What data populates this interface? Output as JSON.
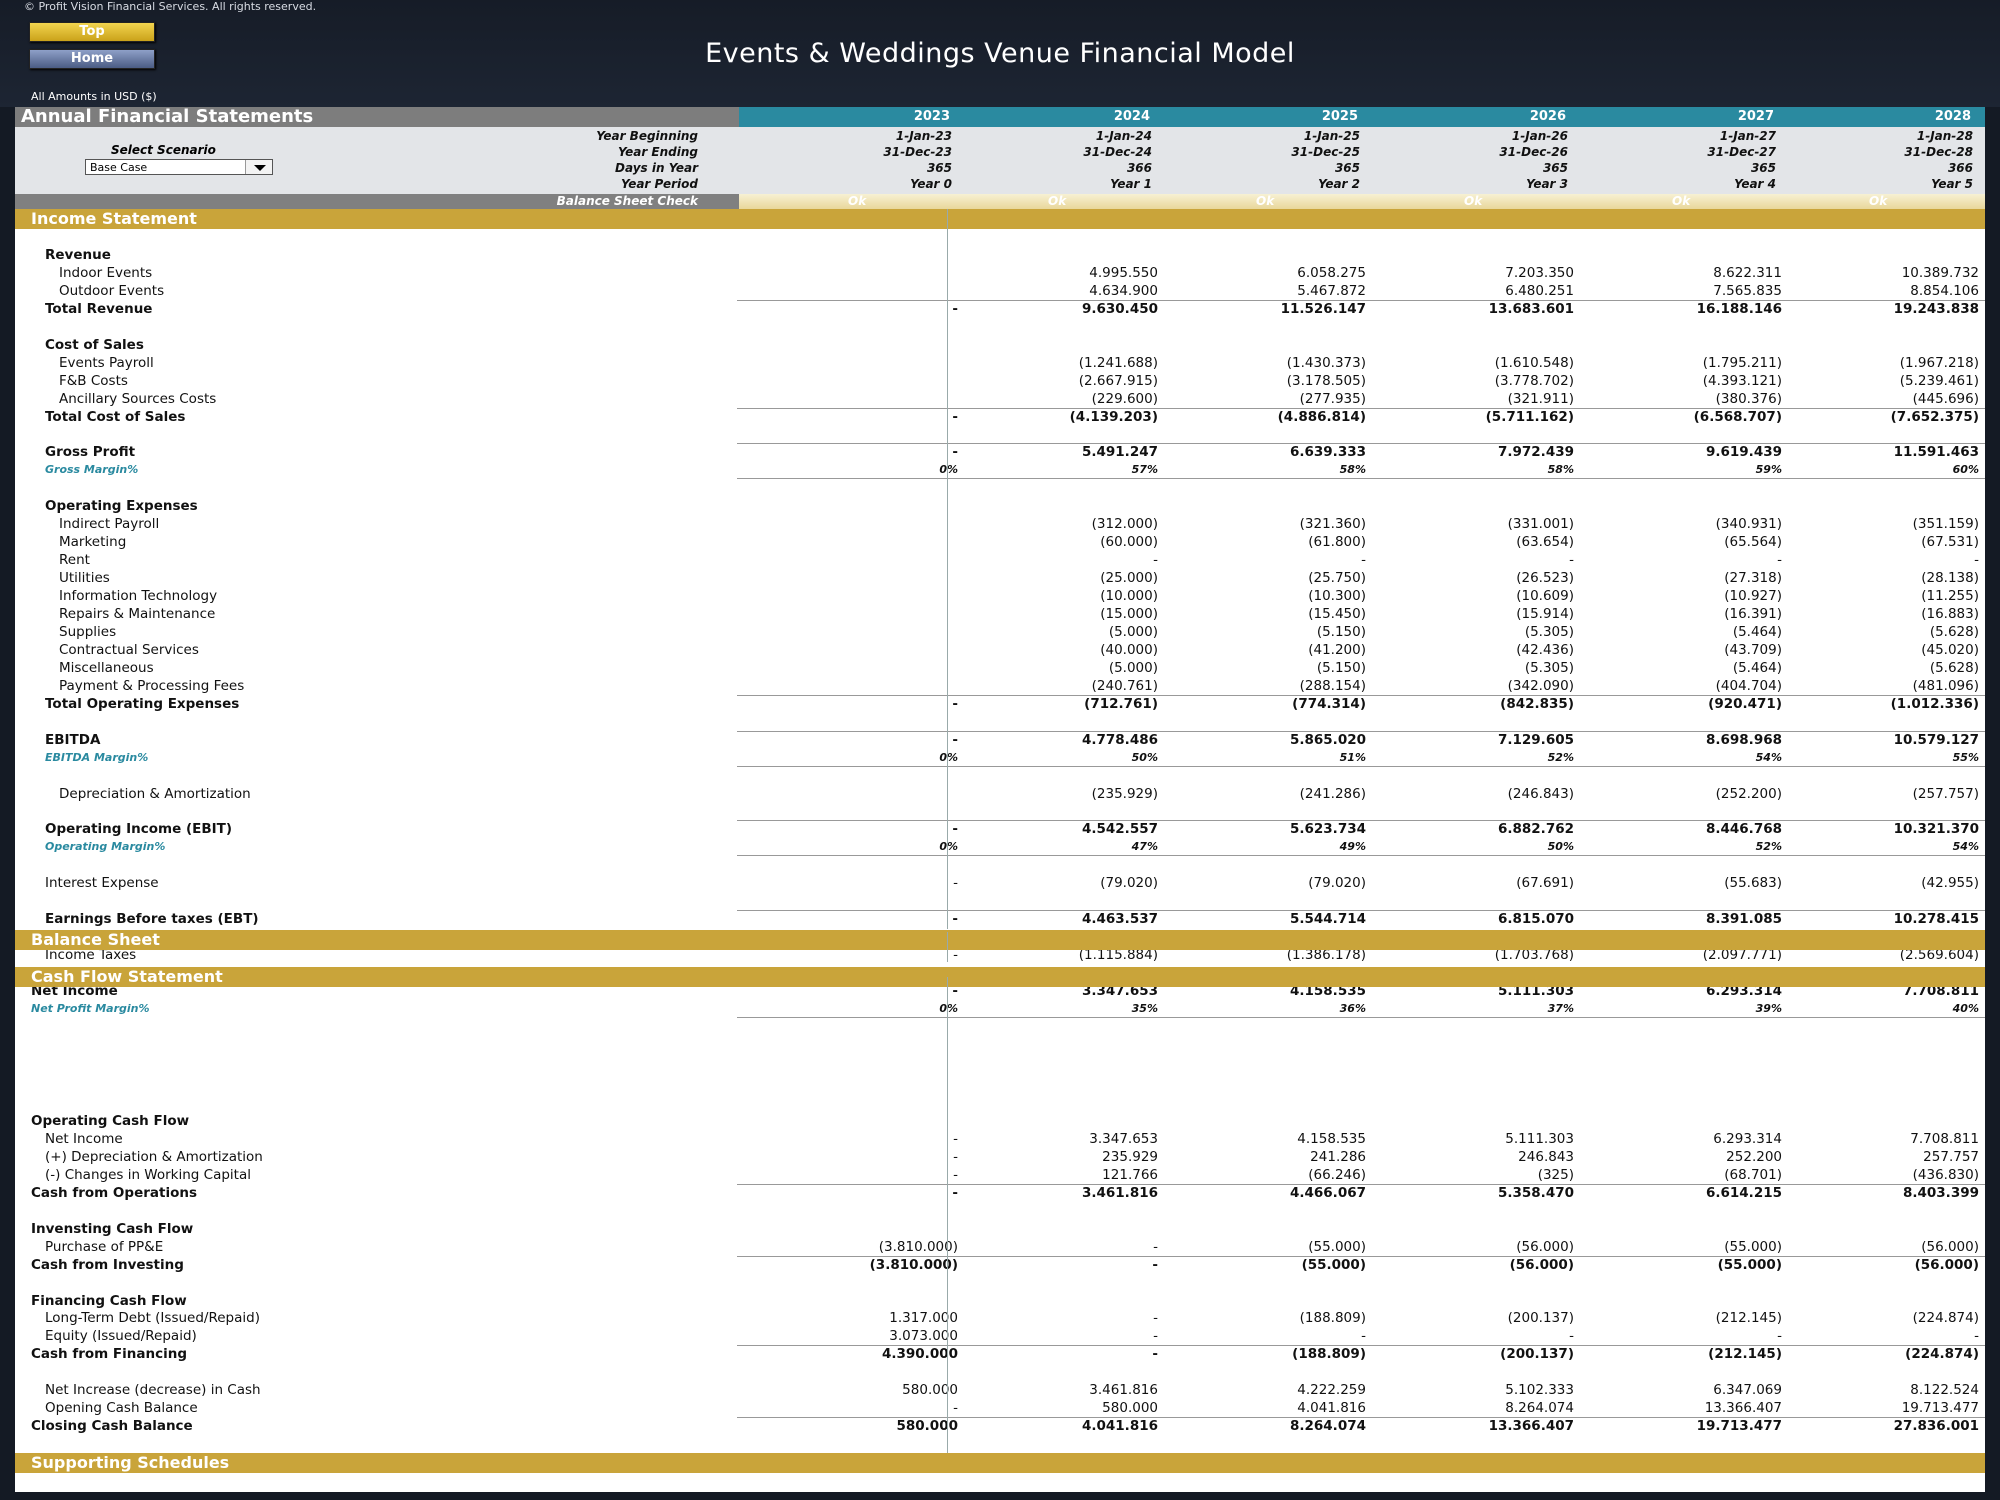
{
  "copyright": "© Profit Vision Financial Services. All rights reserved.",
  "nav": {
    "top_label": "Top",
    "home_label": "Home"
  },
  "title": "Events & Weddings Venue Financial Model",
  "amounts_note": "All Amounts in  USD ($)",
  "header": {
    "sheet_title": "Annual Financial Statements",
    "years": [
      "2023",
      "2024",
      "2025",
      "2026",
      "2027",
      "2028"
    ],
    "rows": [
      {
        "label": "Year Beginning",
        "values": [
          "1-Jan-23",
          "1-Jan-24",
          "1-Jan-25",
          "1-Jan-26",
          "1-Jan-27",
          "1-Jan-28"
        ]
      },
      {
        "label": "Year Ending",
        "values": [
          "31-Dec-23",
          "31-Dec-24",
          "31-Dec-25",
          "31-Dec-26",
          "31-Dec-27",
          "31-Dec-28"
        ]
      },
      {
        "label": "Days in Year",
        "values": [
          "365",
          "366",
          "365",
          "365",
          "365",
          "366"
        ]
      },
      {
        "label": "Year Period",
        "values": [
          "Year 0",
          "Year 1",
          "Year 2",
          "Year 3",
          "Year 4",
          "Year 5"
        ]
      }
    ],
    "scenario_label": "Select Scenario",
    "scenario_value": "Base Case",
    "check_label": "Balance Sheet Check",
    "check_values": [
      "Ok",
      "Ok",
      "Ok",
      "Ok",
      "Ok",
      "Ok"
    ]
  },
  "sections": {
    "income": "Income Statement",
    "balance": "Balance Sheet",
    "cashflow": "Cash Flow Statement",
    "supporting": "Supporting Schedules"
  },
  "income_rows": [
    {
      "label": "Revenue",
      "style": "head"
    },
    {
      "label": "Indoor Events",
      "style": "sub",
      "values": [
        "",
        "4.995.550",
        "6.058.275",
        "7.203.350",
        "8.622.311",
        "10.389.732"
      ]
    },
    {
      "label": "Outdoor Events",
      "style": "sub",
      "values": [
        "",
        "4.634.900",
        "5.467.872",
        "6.480.251",
        "7.565.835",
        "8.854.106"
      ]
    },
    {
      "label": "Total Revenue",
      "style": "total",
      "values": [
        "-",
        "9.630.450",
        "11.526.147",
        "13.683.601",
        "16.188.146",
        "19.243.838"
      ]
    },
    {
      "style": "blank"
    },
    {
      "label": "Cost of Sales",
      "style": "head"
    },
    {
      "label": "Events Payroll",
      "style": "sub",
      "values": [
        "",
        "(1.241.688)",
        "(1.430.373)",
        "(1.610.548)",
        "(1.795.211)",
        "(1.967.218)"
      ]
    },
    {
      "label": "F&B Costs",
      "style": "sub",
      "values": [
        "",
        "(2.667.915)",
        "(3.178.505)",
        "(3.778.702)",
        "(4.393.121)",
        "(5.239.461)"
      ]
    },
    {
      "label": "Ancillary Sources Costs",
      "style": "sub",
      "values": [
        "",
        "(229.600)",
        "(277.935)",
        "(321.911)",
        "(380.376)",
        "(445.696)"
      ]
    },
    {
      "label": "Total Cost of Sales",
      "style": "total",
      "values": [
        "-",
        "(4.139.203)",
        "(4.886.814)",
        "(5.711.162)",
        "(6.568.707)",
        "(7.652.375)"
      ]
    },
    {
      "style": "blank"
    },
    {
      "label": "Gross Profit",
      "style": "total",
      "values": [
        "-",
        "5.491.247",
        "6.639.333",
        "7.972.439",
        "9.619.439",
        "11.591.463"
      ]
    },
    {
      "label": "Gross Margin%",
      "style": "margin",
      "values": [
        "0%",
        "57%",
        "58%",
        "58%",
        "59%",
        "60%"
      ]
    },
    {
      "style": "blank"
    },
    {
      "label": "Operating Expenses",
      "style": "head"
    },
    {
      "label": "Indirect Payroll",
      "style": "sub",
      "values": [
        "",
        "(312.000)",
        "(321.360)",
        "(331.001)",
        "(340.931)",
        "(351.159)"
      ]
    },
    {
      "label": "Marketing",
      "style": "sub",
      "values": [
        "",
        "(60.000)",
        "(61.800)",
        "(63.654)",
        "(65.564)",
        "(67.531)"
      ]
    },
    {
      "label": "Rent",
      "style": "sub",
      "values": [
        "",
        "-",
        "-",
        "-",
        "-",
        "-"
      ]
    },
    {
      "label": "Utilities",
      "style": "sub",
      "values": [
        "",
        "(25.000)",
        "(25.750)",
        "(26.523)",
        "(27.318)",
        "(28.138)"
      ]
    },
    {
      "label": "Information Technology",
      "style": "sub",
      "values": [
        "",
        "(10.000)",
        "(10.300)",
        "(10.609)",
        "(10.927)",
        "(11.255)"
      ]
    },
    {
      "label": "Repairs & Maintenance",
      "style": "sub",
      "values": [
        "",
        "(15.000)",
        "(15.450)",
        "(15.914)",
        "(16.391)",
        "(16.883)"
      ]
    },
    {
      "label": "Supplies",
      "style": "sub",
      "values": [
        "",
        "(5.000)",
        "(5.150)",
        "(5.305)",
        "(5.464)",
        "(5.628)"
      ]
    },
    {
      "label": "Contractual Services",
      "style": "sub",
      "values": [
        "",
        "(40.000)",
        "(41.200)",
        "(42.436)",
        "(43.709)",
        "(45.020)"
      ]
    },
    {
      "label": "Miscellaneous",
      "style": "sub",
      "values": [
        "",
        "(5.000)",
        "(5.150)",
        "(5.305)",
        "(5.464)",
        "(5.628)"
      ]
    },
    {
      "label": "Payment & Processing Fees",
      "style": "sub",
      "values": [
        "",
        "(240.761)",
        "(288.154)",
        "(342.090)",
        "(404.704)",
        "(481.096)"
      ]
    },
    {
      "label": "Total Operating Expenses",
      "style": "total",
      "values": [
        "-",
        "(712.761)",
        "(774.314)",
        "(842.835)",
        "(920.471)",
        "(1.012.336)"
      ]
    },
    {
      "style": "blank"
    },
    {
      "label": "EBITDA",
      "style": "total",
      "values": [
        "-",
        "4.778.486",
        "5.865.020",
        "7.129.605",
        "8.698.968",
        "10.579.127"
      ]
    },
    {
      "label": "EBITDA Margin%",
      "style": "margin",
      "values": [
        "0%",
        "50%",
        "51%",
        "52%",
        "54%",
        "55%"
      ]
    },
    {
      "style": "blank"
    },
    {
      "label": "Depreciation & Amortization",
      "style": "sub",
      "values": [
        "",
        "(235.929)",
        "(241.286)",
        "(246.843)",
        "(252.200)",
        "(257.757)"
      ]
    },
    {
      "style": "blank"
    },
    {
      "label": "Operating Income (EBIT)",
      "style": "total",
      "values": [
        "-",
        "4.542.557",
        "5.623.734",
        "6.882.762",
        "8.446.768",
        "10.321.370"
      ]
    },
    {
      "label": "Operating Margin%",
      "style": "margin",
      "values": [
        "0%",
        "47%",
        "49%",
        "50%",
        "52%",
        "54%"
      ]
    },
    {
      "style": "blank"
    },
    {
      "label": "Interest Expense",
      "style": "plain",
      "values": [
        "-",
        "(79.020)",
        "(79.020)",
        "(67.691)",
        "(55.683)",
        "(42.955)"
      ]
    },
    {
      "style": "blank"
    },
    {
      "label": "Earnings Before taxes (EBT)",
      "style": "totalplain",
      "values": [
        "-",
        "4.463.537",
        "5.544.714",
        "6.815.070",
        "8.391.085",
        "10.278.415"
      ]
    },
    {
      "style": "blank"
    },
    {
      "label": "Income Taxes",
      "style": "plain",
      "values": [
        "-",
        "(1.115.884)",
        "(1.386.178)",
        "(1.703.768)",
        "(2.097.771)",
        "(2.569.604)"
      ]
    },
    {
      "style": "blank"
    },
    {
      "label": "Net Income",
      "style": "grand",
      "values": [
        "-",
        "3.347.653",
        "4.158.535",
        "5.111.303",
        "6.293.314",
        "7.708.811"
      ]
    },
    {
      "label": "Net Profit Margin%",
      "style": "gmargin",
      "values": [
        "0%",
        "35%",
        "36%",
        "37%",
        "39%",
        "40%"
      ]
    }
  ],
  "cash_rows": [
    {
      "label": "Operating Cash Flow",
      "style": "ghead"
    },
    {
      "label": "Net Income",
      "style": "gsub",
      "values": [
        "-",
        "3.347.653",
        "4.158.535",
        "5.111.303",
        "6.293.314",
        "7.708.811"
      ]
    },
    {
      "label": "(+) Depreciation & Amortization",
      "style": "gsub",
      "values": [
        "-",
        "235.929",
        "241.286",
        "246.843",
        "252.200",
        "257.757"
      ]
    },
    {
      "label": "(-) Changes in Working Capital",
      "style": "gsub",
      "values": [
        "-",
        "121.766",
        "(66.246)",
        "(325)",
        "(68.701)",
        "(436.830)"
      ]
    },
    {
      "label": "Cash from Operations",
      "style": "grand",
      "values": [
        "-",
        "3.461.816",
        "4.466.067",
        "5.358.470",
        "6.614.215",
        "8.403.399"
      ]
    },
    {
      "style": "blank"
    },
    {
      "label": "Invensting Cash Flow",
      "style": "ghead"
    },
    {
      "label": "Purchase of PP&E",
      "style": "gsub",
      "values": [
        "(3.810.000)",
        "-",
        "(55.000)",
        "(56.000)",
        "(55.000)",
        "(56.000)"
      ]
    },
    {
      "label": "Cash from Investing",
      "style": "grand",
      "values": [
        "(3.810.000)",
        "-",
        "(55.000)",
        "(56.000)",
        "(55.000)",
        "(56.000)"
      ]
    },
    {
      "style": "blank"
    },
    {
      "label": "Financing Cash Flow",
      "style": "ghead"
    },
    {
      "label": "Long-Term Debt (Issued/Repaid)",
      "style": "gsub",
      "values": [
        "1.317.000",
        "-",
        "(188.809)",
        "(200.137)",
        "(212.145)",
        "(224.874)"
      ]
    },
    {
      "label": "Equity (Issued/Repaid)",
      "style": "gsub",
      "values": [
        "3.073.000",
        "-",
        "-",
        "-",
        "-",
        "-"
      ]
    },
    {
      "label": "Cash from Financing",
      "style": "grand",
      "values": [
        "4.390.000",
        "-",
        "(188.809)",
        "(200.137)",
        "(212.145)",
        "(224.874)"
      ]
    },
    {
      "style": "blank"
    },
    {
      "label": "Net Increase (decrease) in Cash",
      "style": "gsub",
      "values": [
        "580.000",
        "3.461.816",
        "4.222.259",
        "5.102.333",
        "6.347.069",
        "8.122.524"
      ]
    },
    {
      "label": "Opening Cash Balance",
      "style": "gsub",
      "values": [
        "-",
        "580.000",
        "4.041.816",
        "8.264.074",
        "13.366.407",
        "19.713.477"
      ]
    },
    {
      "label": "Closing Cash Balance",
      "style": "grand",
      "values": [
        "580.000",
        "4.041.816",
        "8.264.074",
        "13.366.407",
        "19.713.477",
        "27.836.001"
      ]
    }
  ]
}
